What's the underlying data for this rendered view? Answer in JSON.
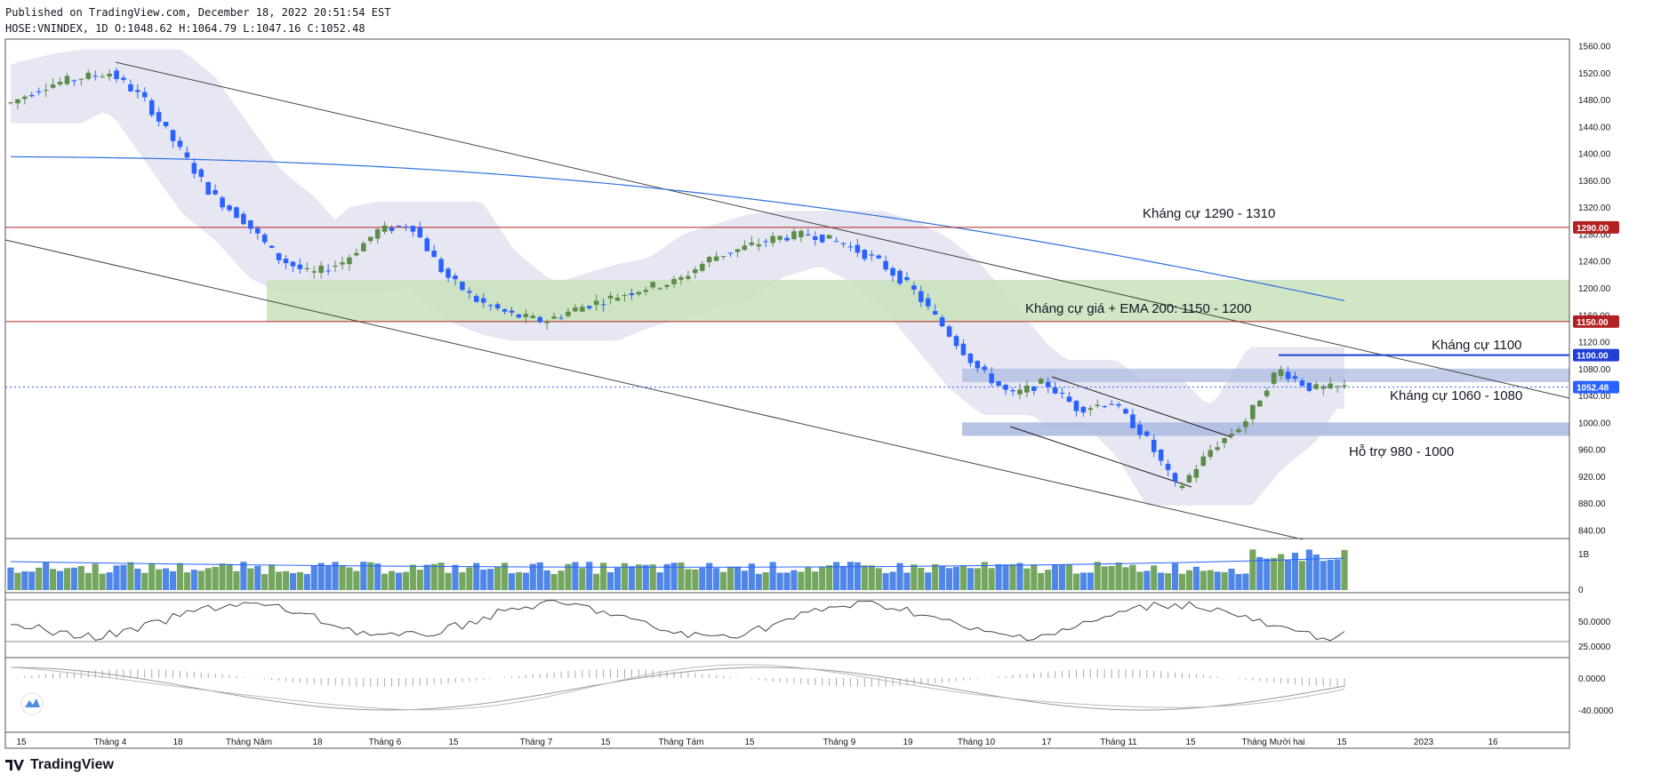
{
  "header": {
    "published": "Published on TradingView.com, December 18, 2022 20:51:54 EST",
    "ohlc_line": "HOSE:VNINDEX, 1D O:1048.62 H:1064.79 L:1047.16 C:1052.48"
  },
  "brand": {
    "name": "TradingView",
    "logo_icon": "tradingview-logo-icon"
  },
  "colors": {
    "up": "#5b8c49",
    "down": "#2962ff",
    "ema": "#2f6fde",
    "resistance_line": "#b22222",
    "blue_line": "#1f3fd6",
    "bb_fill": "#e4e4f2",
    "green_zone": "#c9e2bb",
    "blue_zone": "#aab8e0",
    "volume_up": "#74a65f",
    "volume_down": "#4f86e8",
    "rsi": "#444444",
    "macd": "#999999"
  },
  "chart_data": {
    "type": "candlestick",
    "symbol": "HOSE:VNINDEX",
    "interval": "1D",
    "ylim": [
      830,
      1570
    ],
    "y_ticks": [
      840,
      880,
      920,
      960,
      1000,
      1040,
      1080,
      1120,
      1160,
      1200,
      1240,
      1280,
      1320,
      1360,
      1400,
      1440,
      1480,
      1520,
      1560
    ],
    "x_ticks": [
      "15",
      "Tháng 4",
      "18",
      "Tháng Năm",
      "18",
      "Tháng 6",
      "15",
      "Tháng 7",
      "15",
      "Tháng Tám",
      "15",
      "Tháng 9",
      "19",
      "Tháng 10",
      "17",
      "Tháng 11",
      "15",
      "Tháng Mười hai",
      "15",
      "2023",
      "16"
    ],
    "price_points": [
      [
        "Mar 15",
        1475
      ],
      [
        "Mar 22",
        1500
      ],
      [
        "Mar 29",
        1512
      ],
      [
        "Apr 5",
        1520
      ],
      [
        "Apr 12",
        1480
      ],
      [
        "Apr 19",
        1410
      ],
      [
        "Apr 26",
        1340
      ],
      [
        "May 5",
        1300
      ],
      [
        "May 12",
        1245
      ],
      [
        "May 17",
        1220
      ],
      [
        "May 24",
        1240
      ],
      [
        "Jun 1",
        1285
      ],
      [
        "Jun 8",
        1295
      ],
      [
        "Jun 15",
        1220
      ],
      [
        "Jun 22",
        1180
      ],
      [
        "Jun 29",
        1160
      ],
      [
        "Jul 6",
        1150
      ],
      [
        "Jul 13",
        1170
      ],
      [
        "Jul 20",
        1185
      ],
      [
        "Jul 27",
        1200
      ],
      [
        "Aug 3",
        1210
      ],
      [
        "Aug 10",
        1245
      ],
      [
        "Aug 17",
        1260
      ],
      [
        "Aug 24",
        1275
      ],
      [
        "Aug 31",
        1280
      ],
      [
        "Sep 7",
        1265
      ],
      [
        "Sep 14",
        1240
      ],
      [
        "Sep 21",
        1200
      ],
      [
        "Sep 28",
        1140
      ],
      [
        "Oct 5",
        1080
      ],
      [
        "Oct 12",
        1040
      ],
      [
        "Oct 19",
        1060
      ],
      [
        "Oct 26",
        1020
      ],
      [
        "Nov 2",
        1030
      ],
      [
        "Nov 9",
        980
      ],
      [
        "Nov 16",
        900
      ],
      [
        "Nov 23",
        960
      ],
      [
        "Nov 30",
        1000
      ],
      [
        "Dec 7",
        1080
      ],
      [
        "Dec 14",
        1050
      ],
      [
        "Dec 16",
        1052
      ]
    ],
    "last_close": "1052.48",
    "ema200": {
      "name": "EMA 200",
      "from": 1395,
      "to": 1180
    },
    "levels": [
      {
        "value": 1290,
        "label": "1290.00",
        "kind": "resistance"
      },
      {
        "value": 1150,
        "label": "1150.00",
        "kind": "resistance"
      },
      {
        "value": 1100,
        "label": "1100.00",
        "kind": "resistance-blue"
      }
    ],
    "zones": [
      {
        "from": 1150,
        "to": 1212
      },
      {
        "from": 1060,
        "to": 1080
      },
      {
        "from": 980,
        "to": 1000
      }
    ],
    "annotations": [
      "Kháng cự 1290 - 1310",
      "Kháng cự giá + EMA 200: 1150 - 1200",
      "Kháng cự 1100",
      "Kháng cự 1060 - 1080",
      "Hỗ trợ 980 - 1000"
    ],
    "volume": {
      "tick_labels": [
        "1B",
        "0"
      ]
    },
    "rsi": {
      "tick_labels": [
        "50.0000",
        "25.0000"
      ]
    },
    "macd": {
      "tick_labels": [
        "0.0000",
        "-40.0000"
      ]
    }
  }
}
